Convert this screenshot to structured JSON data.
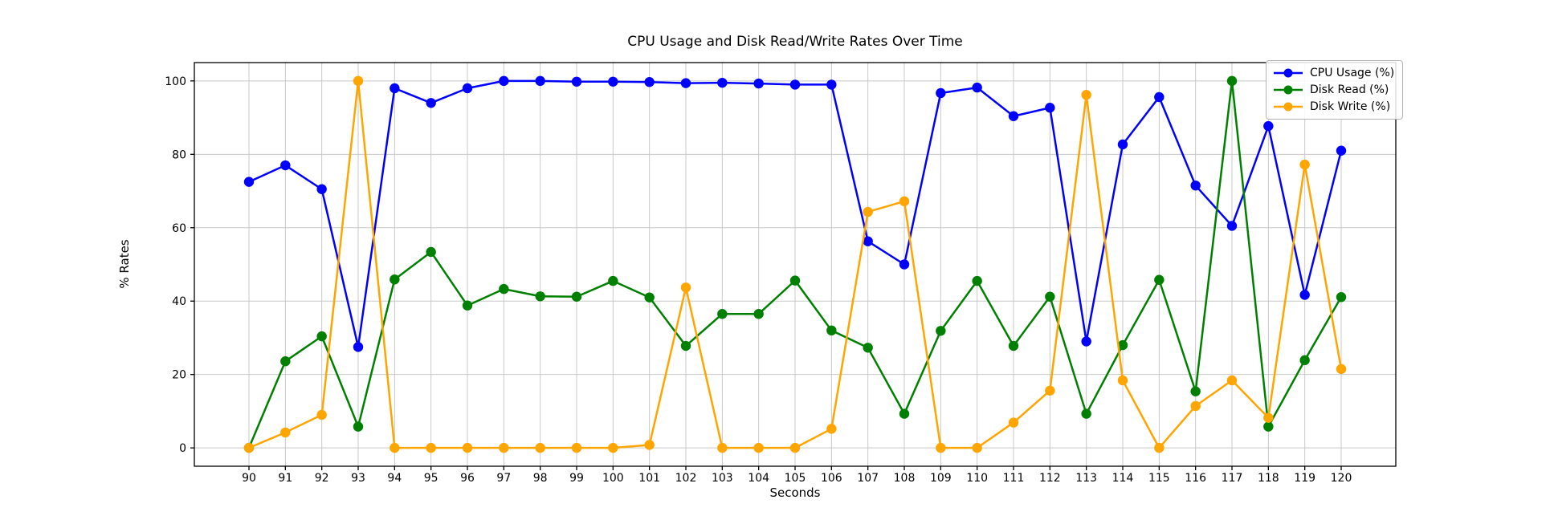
{
  "chart_data": {
    "type": "line",
    "title": "CPU Usage and Disk Read/Write Rates Over Time",
    "xlabel": "Seconds",
    "ylabel": "% Rates",
    "x": [
      90,
      91,
      92,
      93,
      94,
      95,
      96,
      97,
      98,
      99,
      100,
      101,
      102,
      103,
      104,
      105,
      106,
      107,
      108,
      109,
      110,
      111,
      112,
      113,
      114,
      115,
      116,
      117,
      118,
      119,
      120
    ],
    "series": [
      {
        "name": "CPU Usage (%)",
        "color": "#0000ff",
        "values": [
          72.5,
          77.0,
          70.5,
          27.5,
          98.0,
          94.0,
          98.0,
          100.0,
          100.0,
          99.8,
          99.8,
          99.7,
          99.4,
          99.5,
          99.3,
          99.0,
          99.0,
          56.3,
          50.0,
          96.7,
          98.2,
          90.4,
          92.7,
          29.0,
          82.7,
          95.6,
          71.5,
          60.5,
          87.7,
          41.7,
          81.0
        ]
      },
      {
        "name": "Disk Read (%)",
        "color": "#008000",
        "values": [
          0.0,
          23.6,
          30.4,
          5.8,
          45.9,
          53.4,
          38.8,
          43.3,
          41.3,
          41.2,
          45.5,
          41.0,
          27.8,
          36.5,
          36.5,
          45.6,
          32.0,
          27.3,
          9.3,
          31.9,
          45.5,
          27.8,
          41.2,
          9.3,
          28.0,
          45.8,
          15.4,
          100.0,
          5.8,
          23.9,
          41.1
        ]
      },
      {
        "name": "Disk Write (%)",
        "color": "#ffa500",
        "values": [
          0.0,
          4.2,
          9.0,
          100.0,
          0.0,
          0.0,
          0.0,
          0.0,
          0.0,
          0.0,
          0.0,
          0.8,
          43.7,
          0.0,
          0.0,
          0.0,
          5.2,
          64.3,
          67.2,
          0.0,
          0.0,
          6.9,
          15.6,
          96.2,
          18.4,
          0.0,
          11.4,
          18.4,
          8.2,
          77.2,
          21.5
        ]
      }
    ],
    "xlim": [
      88.5,
      121.5
    ],
    "ylim": [
      -5,
      105
    ],
    "yticks": [
      0,
      20,
      40,
      60,
      80,
      100
    ],
    "grid": true,
    "legend_position": "upper right",
    "grid_color": "#c8c8c8",
    "axis_color": "#000000",
    "tick_label_color": "#000000",
    "background_color": "#ffffff"
  }
}
